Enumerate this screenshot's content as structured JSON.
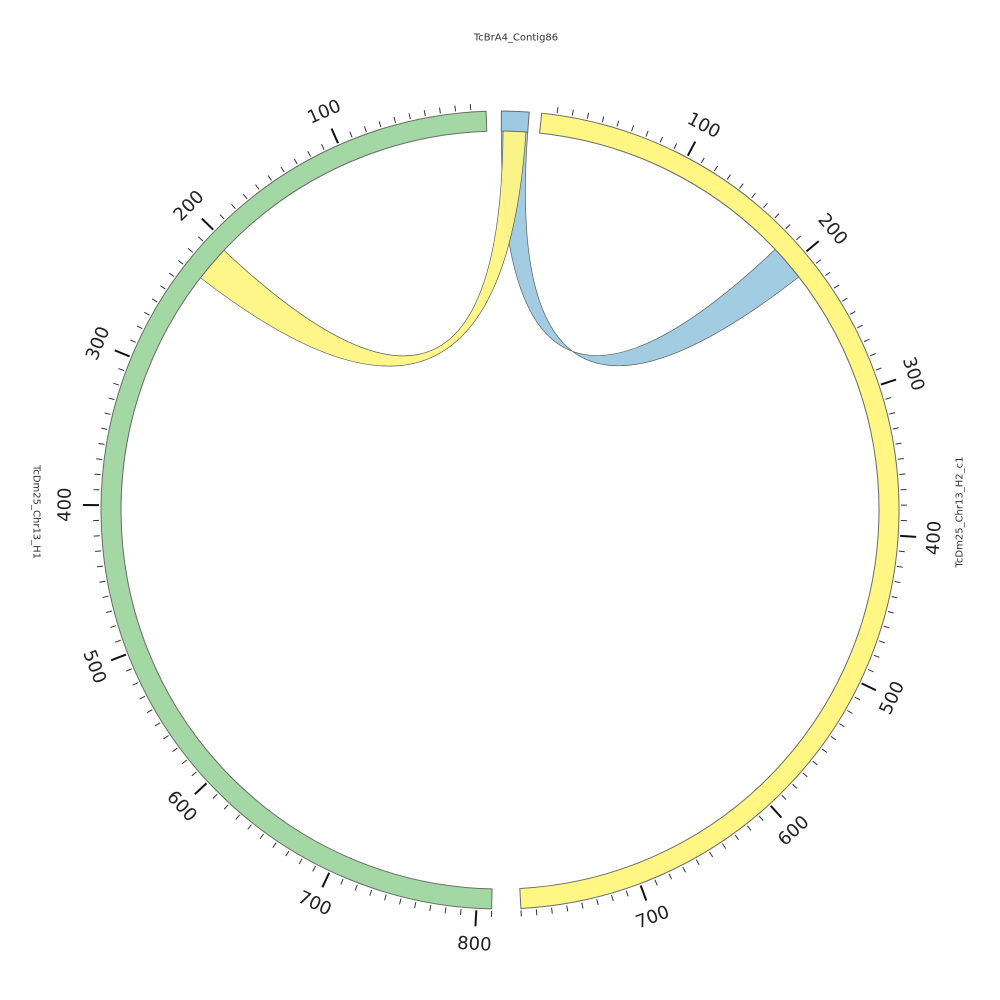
{
  "chart_data": {
    "type": "chord",
    "title": "",
    "unit_scale": 1,
    "segments": [
      {
        "id": "contig",
        "label": "TcBrA4_Contig86",
        "length": 30,
        "color": "#9ecae1",
        "orientation": "clockwise",
        "tick_labels": []
      },
      {
        "id": "h2",
        "label": "TcDm25_Chr13_H2_c1",
        "length": 780,
        "color": "#fff683",
        "orientation": "clockwise",
        "tick_labels": [
          "100",
          "200",
          "300",
          "400",
          "500",
          "600",
          "700"
        ]
      },
      {
        "id": "h1",
        "label": "TcDm25_Chr13_H1",
        "length": 810,
        "color": "#a3d7a3",
        "orientation": "clockwise-reversed",
        "tick_labels": [
          "100",
          "200",
          "300",
          "400",
          "500",
          "600",
          "700",
          "800"
        ]
      }
    ],
    "links": [
      {
        "from": {
          "segment": "contig",
          "start": 0,
          "end": 30
        },
        "to": {
          "segment": "h2",
          "start": 185,
          "end": 210
        },
        "color": "#9ecae1"
      },
      {
        "from": {
          "segment": "contig",
          "start": 2,
          "end": 28
        },
        "to": {
          "segment": "h1",
          "start": 205,
          "end": 230
        },
        "color": "#fff683"
      }
    ]
  }
}
